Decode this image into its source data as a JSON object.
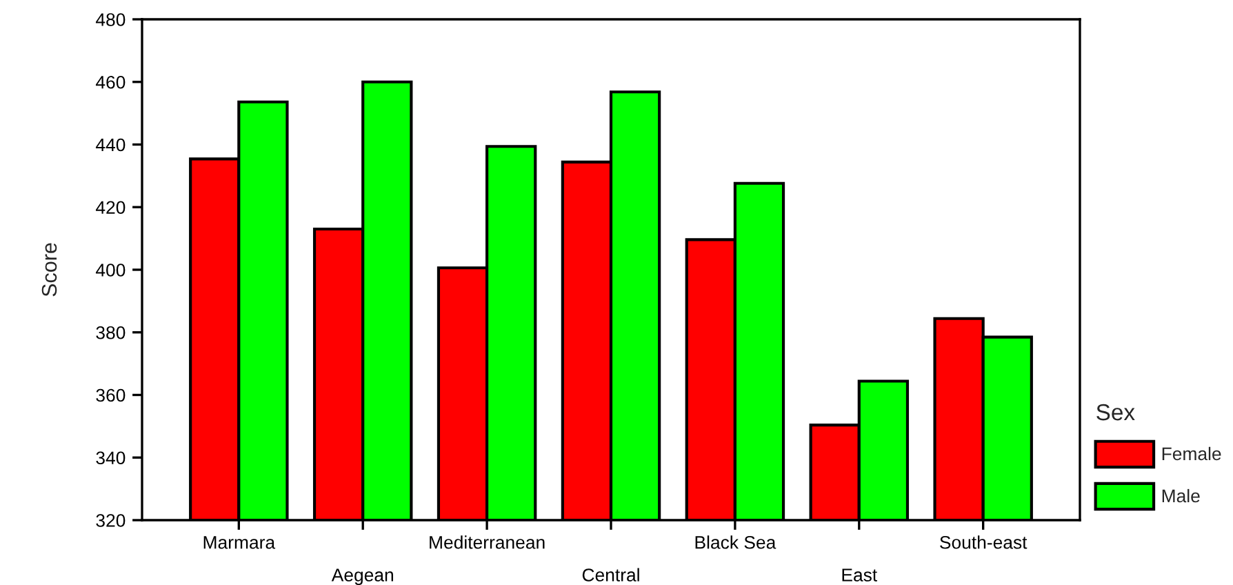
{
  "chart_data": {
    "type": "bar",
    "ylabel": "Score",
    "legend_title": "Sex",
    "legend": "right",
    "categories": [
      "Marmara",
      "Aegean",
      "Mediterranean",
      "Central",
      "Black Sea",
      "East",
      "South-east"
    ],
    "series": [
      {
        "name": "Female",
        "color": "#ff0000",
        "values": [
          435.4,
          413,
          400.6,
          434.4,
          409.6,
          350.4,
          384.4
        ]
      },
      {
        "name": "Male",
        "color": "#00ff00",
        "values": [
          453.6,
          460,
          439.4,
          456.8,
          427.6,
          364.4,
          378.5
        ]
      }
    ],
    "ylim": [
      320,
      480
    ],
    "yticks": [
      320,
      340,
      360,
      380,
      400,
      420,
      440,
      460,
      480
    ],
    "grid": false
  }
}
